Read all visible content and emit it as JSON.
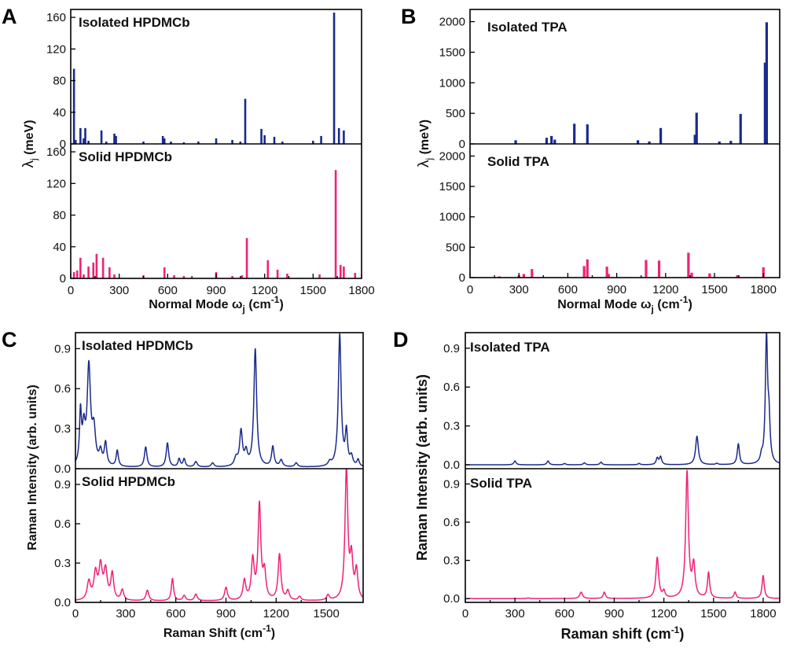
{
  "colors": {
    "isolated": "#1a2a8c",
    "solid": "#ee2277"
  },
  "chart_data": [
    {
      "id": "A",
      "type": "bar",
      "panel_letter": "A",
      "ylabel": "λj (meV)",
      "xlabel": "Normal Mode ωj (cm-1)",
      "xlabel_parts": {
        "main": "Normal Mode ω",
        "sub": "j",
        "unit": " (cm",
        "sup": "-1",
        "close": ")"
      },
      "ylabel_parts": {
        "main": "λ",
        "sub": "j",
        "unit": " (meV)"
      },
      "xlim": [
        0,
        1800
      ],
      "xticks": [
        0,
        300,
        600,
        900,
        1200,
        1500,
        1800
      ],
      "subplots": [
        {
          "label": "Isolated HPDMCb",
          "color_key": "isolated",
          "ylim": [
            0,
            170
          ],
          "yticks": [
            0,
            40,
            80,
            120,
            160
          ],
          "x": [
            20,
            30,
            60,
            80,
            90,
            110,
            190,
            220,
            270,
            280,
            450,
            570,
            580,
            620,
            700,
            790,
            900,
            1000,
            1050,
            1080,
            1180,
            1200,
            1260,
            1310,
            1500,
            1550,
            1630,
            1660,
            1690
          ],
          "values": [
            95,
            5,
            20,
            7,
            20,
            4,
            17,
            3,
            13,
            10,
            3,
            10,
            7,
            3,
            2,
            3,
            7,
            5,
            3,
            57,
            19,
            11,
            9,
            3,
            4,
            10,
            166,
            20,
            17
          ]
        },
        {
          "label": "Solid HPDMCb",
          "color_key": "solid",
          "ylim": [
            0,
            170
          ],
          "yticks": [
            0,
            40,
            80,
            120,
            160
          ],
          "x": [
            20,
            40,
            60,
            80,
            110,
            140,
            160,
            200,
            240,
            270,
            450,
            580,
            640,
            700,
            900,
            1000,
            1060,
            1090,
            1220,
            1280,
            1340,
            1540,
            1640,
            1670,
            1690,
            1760
          ],
          "values": [
            8,
            10,
            26,
            5,
            15,
            20,
            31,
            26,
            14,
            5,
            4,
            14,
            4,
            3,
            8,
            3,
            4,
            51,
            23,
            11,
            6,
            5,
            137,
            17,
            15,
            7
          ]
        }
      ]
    },
    {
      "id": "B",
      "type": "bar",
      "panel_letter": "B",
      "ylabel": "λj (meV)",
      "xlabel": "Normal Mode ωj (cm-1)",
      "xlabel_parts": {
        "main": "Normal Mode ω",
        "sub": "j",
        "unit": " (cm",
        "sup": "-1",
        "close": ")"
      },
      "ylabel_parts": {
        "main": "λ",
        "sub": "j",
        "unit": " (meV)"
      },
      "xlim": [
        0,
        1900
      ],
      "xticks": [
        0,
        300,
        600,
        900,
        1200,
        1500,
        1800
      ],
      "subplots": [
        {
          "label": "Isolated TPA",
          "color_key": "isolated",
          "ylim": [
            0,
            2200
          ],
          "yticks": [
            0,
            500,
            1000,
            1500,
            2000
          ],
          "x": [
            280,
            470,
            500,
            520,
            640,
            720,
            1030,
            1100,
            1170,
            1380,
            1390,
            1530,
            1600,
            1660,
            1810,
            1820
          ],
          "values": [
            60,
            100,
            130,
            70,
            330,
            320,
            60,
            40,
            260,
            150,
            510,
            40,
            50,
            490,
            1330,
            1990
          ]
        },
        {
          "label": "Solid TPA",
          "color_key": "solid",
          "ylim": [
            0,
            2200
          ],
          "yticks": [
            0,
            500,
            1000,
            1500,
            2000
          ],
          "x": [
            180,
            300,
            330,
            380,
            700,
            720,
            840,
            850,
            1080,
            1160,
            1340,
            1360,
            1470,
            1640,
            1800
          ],
          "values": [
            20,
            40,
            60,
            140,
            190,
            300,
            180,
            60,
            290,
            280,
            410,
            80,
            70,
            40,
            170
          ]
        }
      ]
    },
    {
      "id": "C",
      "type": "line",
      "panel_letter": "C",
      "ylabel": "Raman Intensity (arb. units)",
      "xlabel": "Raman Shift (cm-1)",
      "xlabel_parts": {
        "main": "Raman Shift",
        "sub": "",
        "unit": " (cm",
        "sup": "-1",
        "close": ")"
      },
      "xlim": [
        0,
        1720
      ],
      "xticks": [
        0,
        300,
        600,
        900,
        1200,
        1500
      ],
      "subplots": [
        {
          "label": "Isolated HPDMCb",
          "color_key": "isolated",
          "ylim": [
            0,
            1.02
          ],
          "yticks": [
            0.0,
            0.3,
            0.6,
            0.9
          ],
          "baseline": 0.01,
          "peaks": [
            [
              30,
              0.38,
              7
            ],
            [
              50,
              0.25,
              10
            ],
            [
              80,
              0.73,
              12
            ],
            [
              110,
              0.25,
              12
            ],
            [
              150,
              0.1,
              10
            ],
            [
              180,
              0.17,
              9
            ],
            [
              250,
              0.12,
              8
            ],
            [
              420,
              0.15,
              9
            ],
            [
              550,
              0.18,
              9
            ],
            [
              620,
              0.06,
              8
            ],
            [
              650,
              0.06,
              8
            ],
            [
              720,
              0.04,
              10
            ],
            [
              820,
              0.03,
              10
            ],
            [
              960,
              0.06,
              12
            ],
            [
              990,
              0.26,
              10
            ],
            [
              1020,
              0.1,
              10
            ],
            [
              1075,
              0.88,
              10
            ],
            [
              1180,
              0.15,
              9
            ],
            [
              1230,
              0.05,
              10
            ],
            [
              1320,
              0.03,
              10
            ],
            [
              1520,
              0.03,
              10
            ],
            [
              1580,
              0.99,
              10
            ],
            [
              1620,
              0.25,
              8
            ],
            [
              1650,
              0.07,
              10
            ],
            [
              1690,
              0.05,
              8
            ]
          ]
        },
        {
          "label": "Solid HPDMCb",
          "color_key": "solid",
          "ylim": [
            0,
            1.02
          ],
          "yticks": [
            0.0,
            0.3,
            0.6,
            0.9
          ],
          "baseline": 0.01,
          "peaks": [
            [
              80,
              0.14,
              12
            ],
            [
              120,
              0.2,
              12
            ],
            [
              150,
              0.25,
              12
            ],
            [
              180,
              0.22,
              12
            ],
            [
              220,
              0.2,
              10
            ],
            [
              280,
              0.08,
              10
            ],
            [
              430,
              0.08,
              10
            ],
            [
              580,
              0.17,
              8
            ],
            [
              650,
              0.04,
              10
            ],
            [
              720,
              0.05,
              10
            ],
            [
              900,
              0.1,
              10
            ],
            [
              1010,
              0.15,
              10
            ],
            [
              1060,
              0.3,
              10
            ],
            [
              1100,
              0.72,
              10
            ],
            [
              1130,
              0.2,
              10
            ],
            [
              1220,
              0.35,
              10
            ],
            [
              1270,
              0.07,
              10
            ],
            [
              1340,
              0.03,
              10
            ],
            [
              1510,
              0.04,
              10
            ],
            [
              1620,
              1.0,
              10
            ],
            [
              1650,
              0.3,
              10
            ],
            [
              1680,
              0.22,
              10
            ]
          ]
        }
      ]
    },
    {
      "id": "D",
      "type": "line",
      "panel_letter": "D",
      "ylabel": "Raman Intensity (arb. units)",
      "xlabel": "Raman shift (cm-1)",
      "xlabel_parts": {
        "main": "Raman shift",
        "sub": "",
        "unit": " (cm",
        "sup": "-1",
        "close": ")"
      },
      "xlim": [
        0,
        1900
      ],
      "xticks": [
        0,
        300,
        600,
        900,
        1200,
        1500,
        1800
      ],
      "subplots": [
        {
          "label": "Isolated TPA",
          "color_key": "isolated",
          "ylim": [
            -0.03,
            1.02
          ],
          "yticks": [
            0.0,
            0.3,
            0.6,
            0.9
          ],
          "baseline": 0.0,
          "peaks": [
            [
              300,
              0.03,
              8
            ],
            [
              500,
              0.03,
              8
            ],
            [
              600,
              0.01,
              8
            ],
            [
              720,
              0.015,
              8
            ],
            [
              820,
              0.02,
              8
            ],
            [
              1050,
              0.01,
              8
            ],
            [
              1160,
              0.05,
              8
            ],
            [
              1180,
              0.06,
              8
            ],
            [
              1400,
              0.22,
              10
            ],
            [
              1520,
              0.01,
              8
            ],
            [
              1650,
              0.16,
              8
            ],
            [
              1790,
              0.05,
              8
            ],
            [
              1820,
              0.97,
              8
            ],
            [
              1835,
              0.3,
              8
            ]
          ]
        },
        {
          "label": "Solid TPA",
          "color_key": "solid",
          "ylim": [
            -0.03,
            1.02
          ],
          "yticks": [
            0.0,
            0.3,
            0.6,
            0.9
          ],
          "baseline": 0.0,
          "peaks": [
            [
              380,
              0.005,
              8
            ],
            [
              700,
              0.05,
              10
            ],
            [
              840,
              0.05,
              8
            ],
            [
              1160,
              0.32,
              10
            ],
            [
              1200,
              0.05,
              8
            ],
            [
              1340,
              0.99,
              10
            ],
            [
              1380,
              0.25,
              10
            ],
            [
              1470,
              0.2,
              8
            ],
            [
              1630,
              0.05,
              8
            ],
            [
              1800,
              0.18,
              8
            ]
          ]
        }
      ]
    }
  ]
}
